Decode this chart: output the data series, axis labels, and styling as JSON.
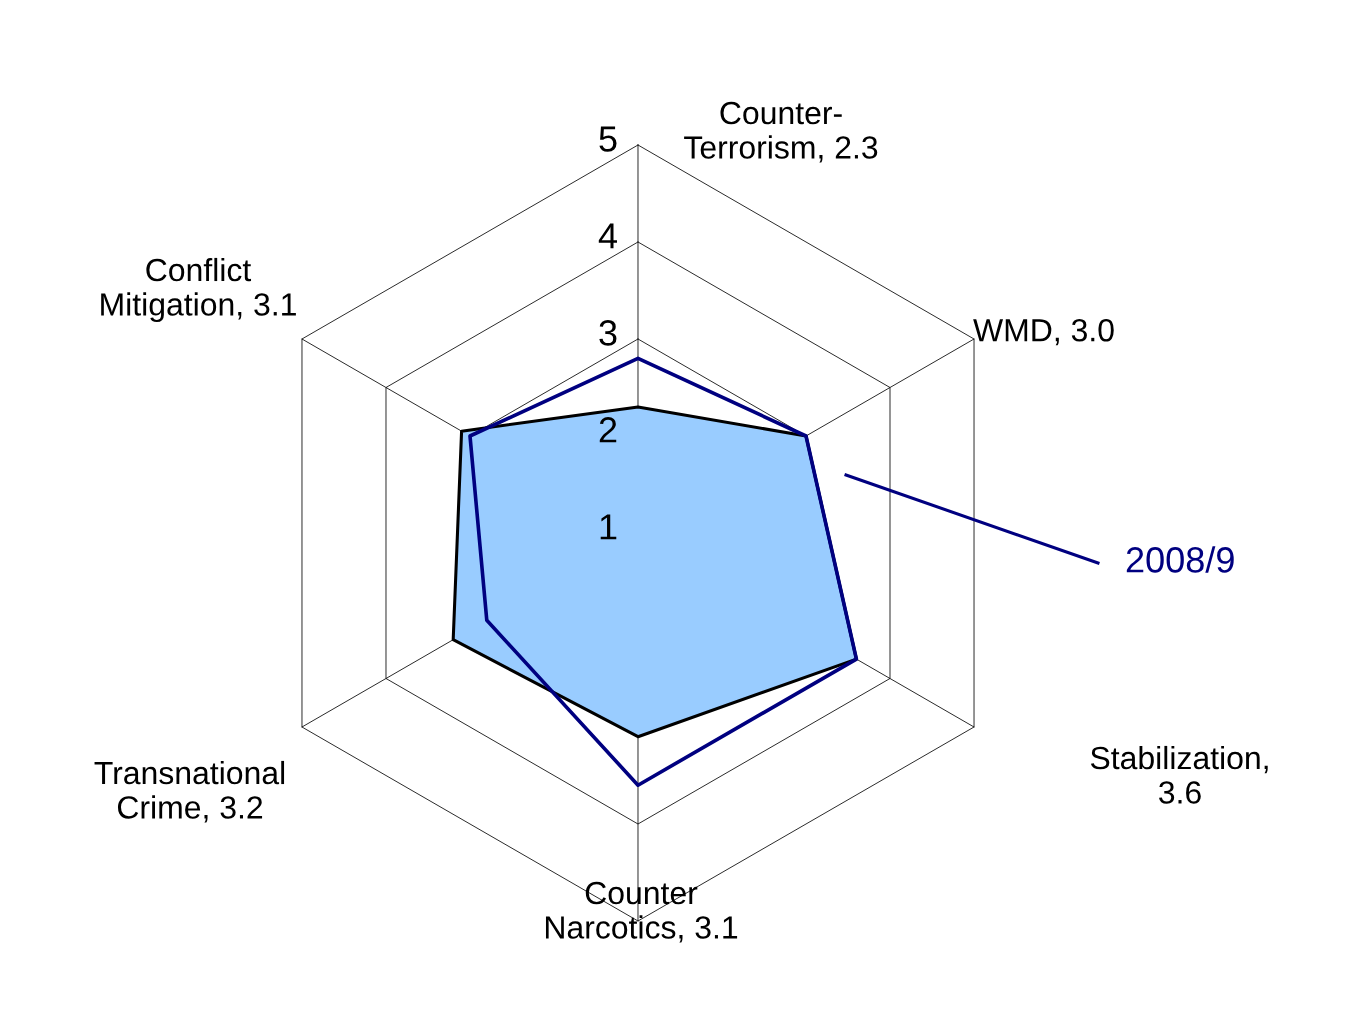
{
  "chart_data": {
    "type": "radar",
    "categories": [
      "Counter-\nTerrorism, 2.3",
      "WMD, 3.0",
      "Stabilization,\n3.6",
      "Counter\nNarcotics, 3.1",
      "Transnational\nCrime, 3.2",
      "Conflict\nMitigation, 3.1"
    ],
    "series": [
      {
        "color": "#99ccff",
        "values": [
          2.3,
          3.0,
          3.6,
          3.1,
          3.2,
          3.1
        ]
      },
      {
        "name": "2008/9",
        "color": "#000080",
        "values": [
          2.8,
          3.0,
          3.6,
          3.6,
          2.8,
          3.0
        ]
      }
    ],
    "ylim": [
      1,
      5
    ],
    "yticks": [
      1,
      2,
      3,
      4,
      5
    ],
    "grid": true
  }
}
